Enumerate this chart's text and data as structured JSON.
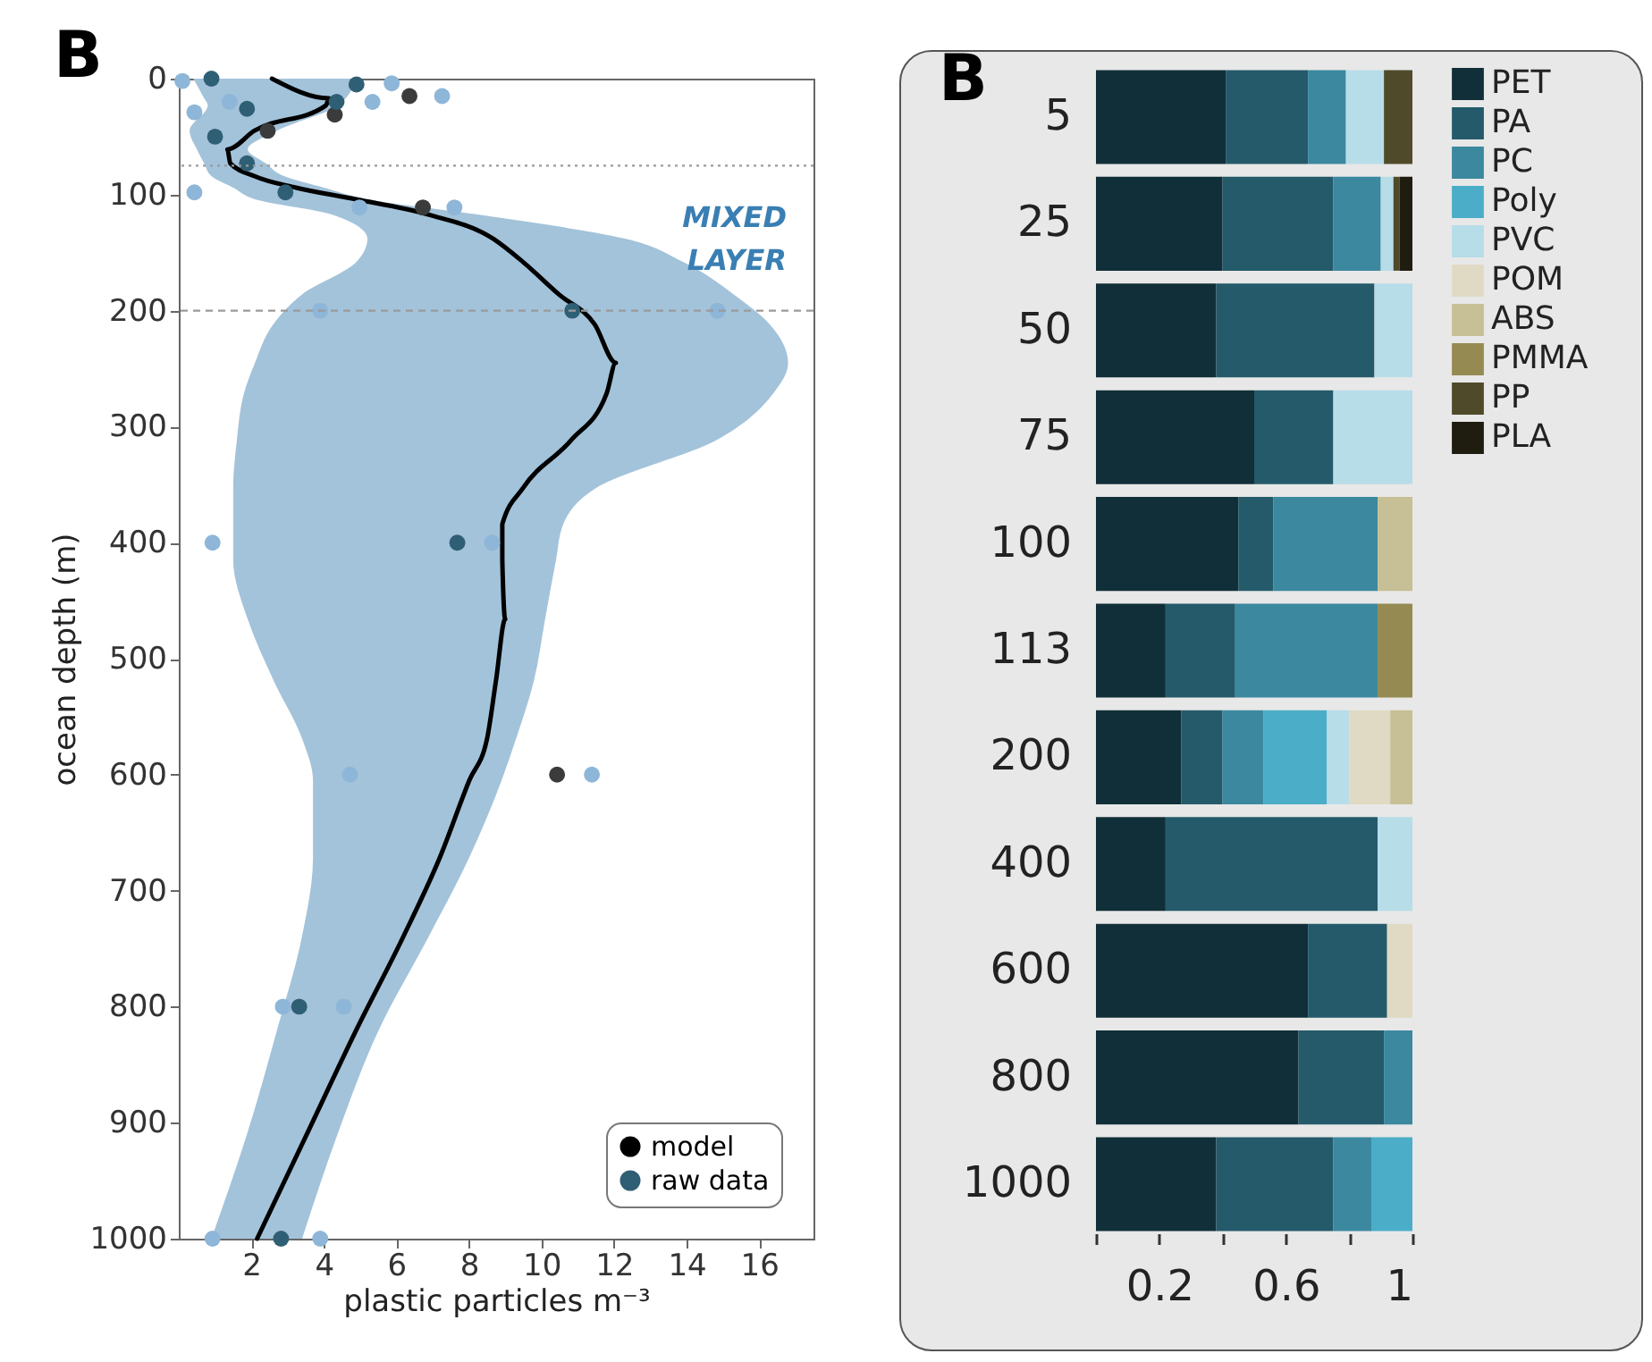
{
  "chart_data": [
    {
      "type": "line",
      "orientation": "horizontal",
      "title": "B",
      "xlabel": "plastic particles m⁻³",
      "ylabel": "ocean depth (m)",
      "xlim": [
        0,
        17.5
      ],
      "xticks": [
        2,
        4,
        6,
        8,
        10,
        12,
        14,
        16
      ],
      "ylim": [
        1000,
        0
      ],
      "yticks": [
        0,
        100,
        200,
        300,
        400,
        500,
        600,
        700,
        800,
        900,
        1000
      ],
      "legend": "bottom right",
      "annotations": [
        "MIXED LAYER"
      ],
      "ref_lines": [
        {
          "axis": "y",
          "value": 75,
          "color": "#9a9a9a",
          "line_style": "dotted"
        },
        {
          "axis": "y",
          "value": 200,
          "color": "#9a9a9a",
          "line_style": "dashed"
        }
      ],
      "series": [
        {
          "name": "model",
          "type": "line",
          "color": "#000000",
          "x": [
            0,
            17,
            23,
            45,
            61,
            73,
            84,
            94,
            104,
            117,
            138,
            158,
            186,
            212,
            245,
            271,
            312,
            353,
            384,
            415,
            466,
            518,
            569,
            605,
            672,
            739,
            821,
            908,
            1000
          ],
          "values": [
            2.57,
            4.14,
            4.06,
            2.08,
            1.34,
            1.42,
            2.08,
            3.23,
            4.88,
            6.86,
            8.67,
            9.49,
            10.48,
            11.47,
            12.05,
            11.8,
            10.81,
            9.49,
            8.92,
            8.92,
            9.0,
            8.75,
            8.5,
            8.01,
            7.19,
            6.2,
            4.88,
            3.56,
            2.16
          ],
          "lower": [
            0.4,
            0.7,
            0.8,
            0.3,
            0.5,
            0.7,
            0.9,
            1.5,
            2.1,
            4.2,
            5.2,
            4.9,
            3.4,
            2.6,
            2.1,
            1.8,
            1.6,
            1.5,
            1.5,
            1.5,
            1.9,
            2.6,
            3.4,
            3.7,
            3.7,
            3.4,
            2.7,
            1.9,
            0.9
          ],
          "upper": [
            4.9,
            4.6,
            4.4,
            2.7,
            1.9,
            2.4,
            2.9,
            4.0,
            5.2,
            8.2,
            12.3,
            13.9,
            15.3,
            16.3,
            16.8,
            16.4,
            14.8,
            11.5,
            10.6,
            10.4,
            10.1,
            9.8,
            9.3,
            8.9,
            8.0,
            6.9,
            5.5,
            4.4,
            3.4
          ]
        },
        {
          "type": "scatter",
          "color": "#8db6d8",
          "x": [
            2,
            4,
            15,
            20,
            20,
            29,
            98,
            111,
            111,
            200,
            200,
            400,
            400,
            600,
            600,
            800,
            800,
            1000,
            1000
          ],
          "values": [
            0.1,
            5.87,
            7.26,
            5.34,
            1.4,
            0.43,
            0.43,
            4.98,
            7.6,
            3.9,
            14.85,
            0.93,
            8.64,
            4.72,
            11.39,
            2.87,
            4.55,
            0.93,
            3.9
          ]
        },
        {
          "type": "scatter",
          "color": "#3b3b3b",
          "x": [
            15,
            31,
            45,
            111,
            600
          ],
          "values": [
            6.36,
            4.3,
            2.45,
            6.73,
            10.43
          ]
        },
        {
          "name": "raw data",
          "type": "scatter",
          "color": "#2f5f74",
          "x": [
            0,
            5,
            20,
            26,
            50,
            73,
            98,
            200,
            400,
            800,
            1000
          ],
          "values": [
            0.9,
            4.9,
            4.35,
            1.88,
            1.0,
            1.88,
            2.94,
            10.85,
            7.68,
            3.32,
            2.82
          ]
        }
      ]
    },
    {
      "type": "bar",
      "stacked": true,
      "orientation": "horizontal",
      "title": "B",
      "categories": [
        "5",
        "25",
        "50",
        "75",
        "100",
        "113",
        "200",
        "400",
        "600",
        "800",
        "1000"
      ],
      "xlim": [
        0,
        1
      ],
      "xticks": [
        {
          "value": 0,
          "label": null
        },
        0.2,
        {
          "value": 0.4,
          "label": null
        },
        0.6,
        {
          "value": 0.8,
          "label": null
        },
        1
      ],
      "legend": "right",
      "series": [
        {
          "name": "PET",
          "color": "#112f38",
          "values": [
            0.41,
            0.4,
            0.38,
            0.5,
            0.45,
            0.22,
            0.27,
            0.22,
            0.67,
            0.64,
            0.38
          ]
        },
        {
          "name": "PA",
          "color": "#245a6a",
          "values": [
            0.26,
            0.35,
            0.5,
            0.25,
            0.11,
            0.22,
            0.13,
            0.67,
            0.25,
            0.27,
            0.37
          ]
        },
        {
          "name": "PC",
          "color": "#3b889f",
          "values": [
            0.12,
            0.15,
            null,
            null,
            0.33,
            0.45,
            0.13,
            null,
            null,
            0.09,
            0.12
          ]
        },
        {
          "name": "Poly",
          "color": "#4badc8",
          "values": [
            null,
            null,
            null,
            null,
            null,
            null,
            0.2,
            null,
            null,
            null,
            0.13
          ]
        },
        {
          "name": "PVC",
          "color": "#b7dde8",
          "values": [
            0.12,
            0.04,
            0.12,
            0.25,
            null,
            null,
            0.07,
            0.11,
            null,
            null,
            null
          ]
        },
        {
          "name": "POM",
          "color": "#e0dac4",
          "values": [
            null,
            null,
            null,
            null,
            null,
            null,
            0.13,
            null,
            0.08,
            null,
            null
          ]
        },
        {
          "name": "ABS",
          "color": "#c7bf95",
          "values": [
            null,
            null,
            null,
            null,
            0.11,
            null,
            0.07,
            null,
            null,
            null,
            null
          ]
        },
        {
          "name": "PMMA",
          "color": "#958a51",
          "values": [
            null,
            null,
            null,
            null,
            null,
            0.11,
            null,
            null,
            null,
            null,
            null
          ]
        },
        {
          "name": "PP",
          "color": "#4f4a2a",
          "values": [
            0.09,
            0.02,
            null,
            null,
            null,
            null,
            null,
            null,
            null,
            null,
            null
          ]
        },
        {
          "name": "PLA",
          "color": "#1f1c10",
          "values": [
            null,
            0.04,
            null,
            null,
            null,
            null,
            null,
            null,
            null,
            null,
            null
          ]
        }
      ]
    }
  ]
}
